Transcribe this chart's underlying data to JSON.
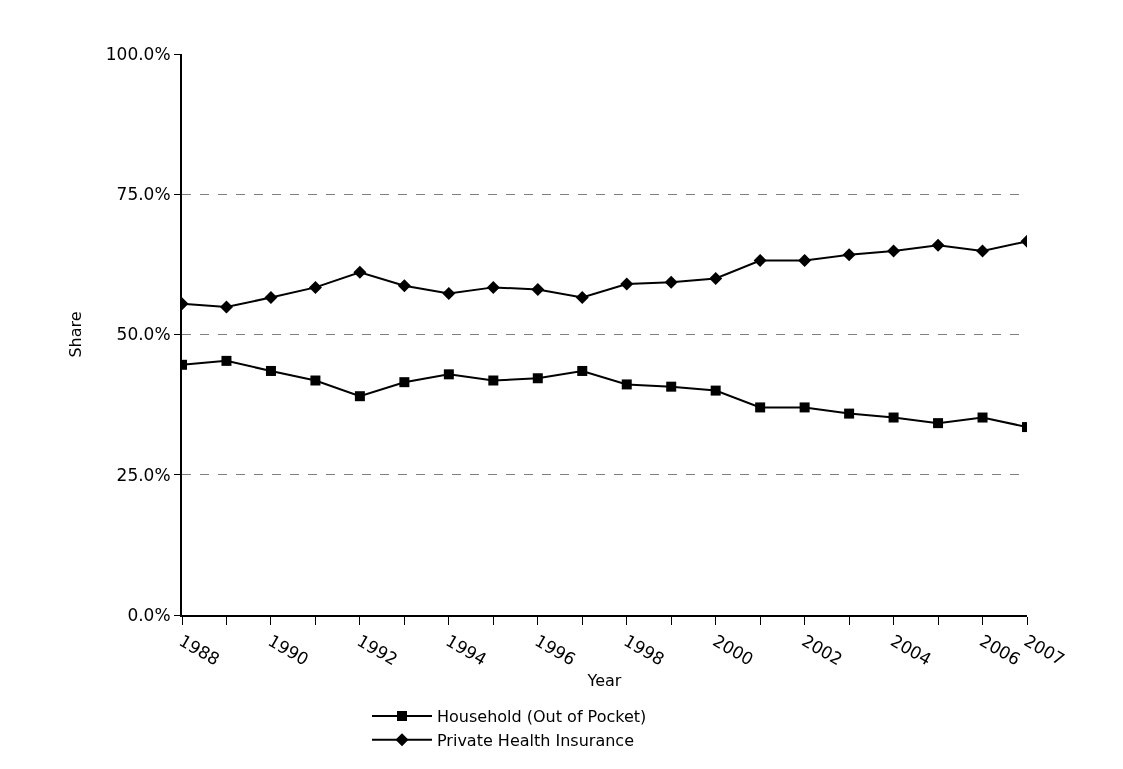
{
  "chart_data": {
    "type": "line",
    "xlabel": "Year",
    "ylabel": "Share",
    "x": [
      1988,
      1989,
      1990,
      1991,
      1992,
      1993,
      1994,
      1995,
      1996,
      1997,
      1998,
      1999,
      2000,
      2001,
      2002,
      2003,
      2004,
      2005,
      2006,
      2007
    ],
    "series": [
      {
        "name": "Household (Out of Pocket)",
        "color": "#000000",
        "marker": "square",
        "values": [
          44.6,
          45.3,
          43.5,
          41.8,
          39.0,
          41.5,
          42.9,
          41.8,
          42.2,
          43.5,
          41.1,
          40.7,
          40.0,
          37.0,
          37.0,
          35.9,
          35.2,
          34.2,
          35.2,
          33.5
        ]
      },
      {
        "name": "Private Health Insurance",
        "color": "#000000",
        "marker": "diamond",
        "values": [
          55.5,
          54.9,
          56.6,
          58.4,
          61.1,
          58.7,
          57.3,
          58.4,
          58.0,
          56.6,
          59.0,
          59.3,
          60.0,
          63.2,
          63.2,
          64.2,
          64.9,
          65.9,
          64.9,
          66.6
        ]
      }
    ],
    "xlim": [
      1988,
      2007
    ],
    "xticks": [
      1988,
      {
        "value": 1989,
        "label": null
      },
      1990,
      {
        "value": 1991,
        "label": null
      },
      1992,
      {
        "value": 1993,
        "label": null
      },
      1994,
      {
        "value": 1995,
        "label": null
      },
      1996,
      {
        "value": 1997,
        "label": null
      },
      1998,
      {
        "value": 1999,
        "label": null
      },
      2000,
      {
        "value": 2001,
        "label": null
      },
      2002,
      {
        "value": 2003,
        "label": null
      },
      2004,
      {
        "value": 2005,
        "label": null
      },
      2006,
      2007
    ],
    "ylim": [
      0,
      100
    ],
    "yticks": [
      {
        "value": 0,
        "label": "0.0%"
      },
      {
        "value": 25,
        "label": "25.0%"
      },
      {
        "value": 50,
        "label": "50.0%"
      },
      {
        "value": 75,
        "label": "75.0%"
      },
      {
        "value": 100,
        "label": "100.0%"
      }
    ],
    "grid": "y",
    "legend": "bottom",
    "line_style": "solid"
  }
}
